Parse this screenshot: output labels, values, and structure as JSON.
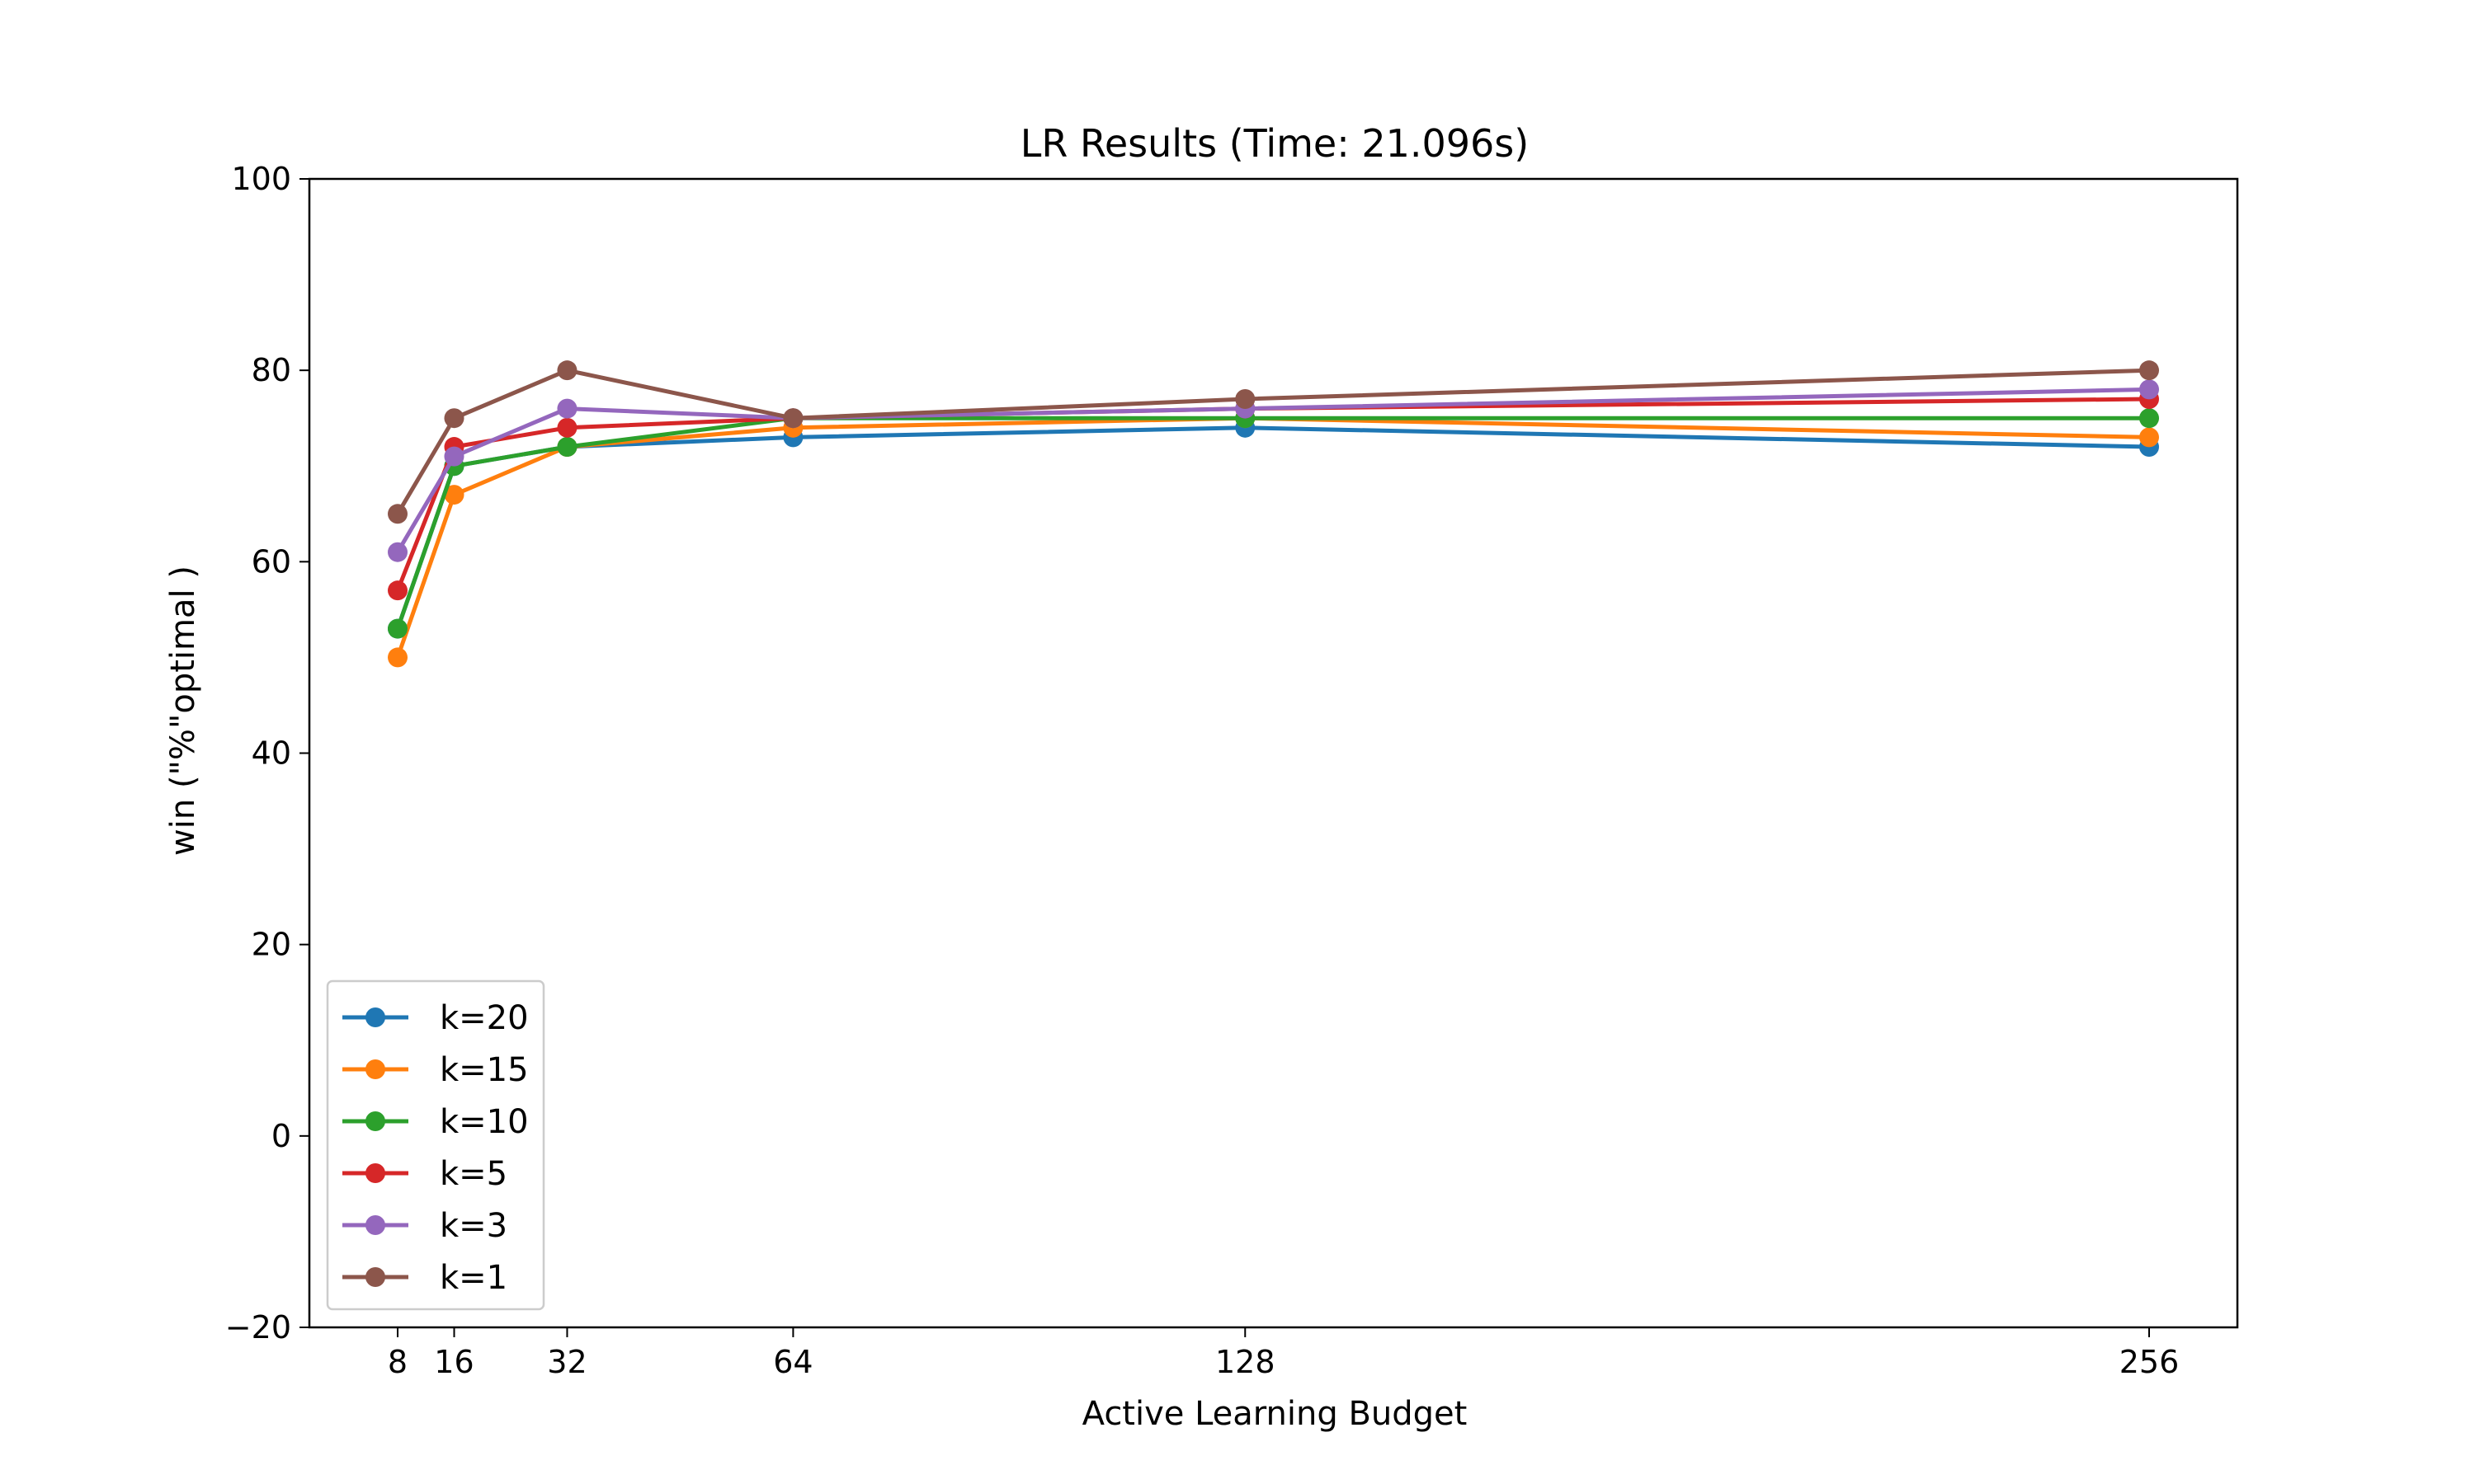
{
  "chart_data": {
    "type": "line",
    "title": "LR Results (Time: 21.096s)",
    "xlabel": "Active Learning Budget",
    "ylabel": "win (\"%\"optimal )",
    "x": [
      8,
      16,
      32,
      64,
      128,
      256
    ],
    "x_tick_labels": [
      "8",
      "16",
      "32",
      "64",
      "128",
      "256"
    ],
    "xlim": [
      -4.5,
      268.5
    ],
    "ylim": [
      -20,
      100
    ],
    "y_ticks": [
      -20,
      0,
      20,
      40,
      60,
      80,
      100
    ],
    "y_tick_labels": [
      "−20",
      "0",
      "20",
      "40",
      "60",
      "80",
      "100"
    ],
    "grid": false,
    "legend_position": "lower-left",
    "series": [
      {
        "name": "k=20",
        "color": "#1f77b4",
        "values": [
          53,
          70,
          72,
          73,
          74,
          72
        ]
      },
      {
        "name": "k=15",
        "color": "#ff7f0e",
        "values": [
          50,
          67,
          72,
          74,
          75,
          73
        ]
      },
      {
        "name": "k=10",
        "color": "#2ca02c",
        "values": [
          53,
          70,
          72,
          75,
          75,
          75
        ]
      },
      {
        "name": "k=5",
        "color": "#d62728",
        "values": [
          57,
          72,
          74,
          75,
          76,
          77
        ]
      },
      {
        "name": "k=3",
        "color": "#9467bd",
        "values": [
          61,
          71,
          76,
          75,
          76,
          78
        ]
      },
      {
        "name": "k=1",
        "color": "#8c564b",
        "values": [
          65,
          75,
          80,
          75,
          77,
          80
        ]
      }
    ]
  }
}
